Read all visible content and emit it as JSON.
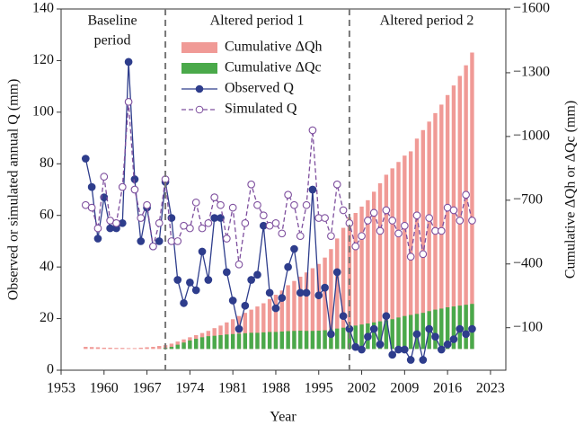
{
  "chart_data": {
    "type": "combo",
    "xlabel": "Year",
    "ylabel": "Observed or simulated annual Q (mm)",
    "y2label": "Cumulative ΔQh or ΔQc (mm)",
    "annotations": [
      "Baseline",
      "period",
      "Altered period 1",
      "Altered period 2"
    ],
    "period_breaks": [
      1970,
      2000
    ],
    "xlim": [
      1953,
      2025.5
    ],
    "xticks": [
      1953,
      1960,
      1967,
      1974,
      1981,
      1988,
      1995,
      2002,
      2009,
      2016,
      2023
    ],
    "ylim": [
      0,
      140
    ],
    "yticks": [
      0,
      20,
      40,
      60,
      80,
      100,
      120,
      140
    ],
    "y2lim": [
      100,
      -1600
    ],
    "y2ticks": [
      {
        "value": -1600,
        "label": "−1600"
      },
      {
        "value": -1300,
        "label": "−1300"
      },
      {
        "value": -1000,
        "label": "−1000"
      },
      {
        "value": -700,
        "label": "−700"
      },
      {
        "value": -400,
        "label": "−400"
      },
      {
        "value": -100,
        "label": "−100"
      }
    ],
    "x": [
      1957,
      1958,
      1959,
      1960,
      1961,
      1962,
      1963,
      1964,
      1965,
      1966,
      1967,
      1968,
      1969,
      1970,
      1971,
      1972,
      1973,
      1974,
      1975,
      1976,
      1977,
      1978,
      1979,
      1980,
      1981,
      1982,
      1983,
      1984,
      1985,
      1986,
      1987,
      1988,
      1989,
      1990,
      1991,
      1992,
      1993,
      1994,
      1995,
      1996,
      1997,
      1998,
      1999,
      2000,
      2001,
      2002,
      2003,
      2004,
      2005,
      2006,
      2007,
      2008,
      2009,
      2010,
      2011,
      2012,
      2013,
      2014,
      2015,
      2016,
      2017,
      2018,
      2019,
      2020
    ],
    "series": [
      {
        "name": "Cumulative ΔQh",
        "type": "bar",
        "axis": "y2",
        "color": "#f09a96",
        "values": [
          -10,
          -9,
          -8,
          -6,
          -6,
          -5,
          -5,
          -4,
          -4,
          -6,
          -8,
          -10,
          -14,
          -18,
          -25,
          -35,
          -45,
          -55,
          -65,
          -75,
          -85,
          -98,
          -110,
          -125,
          -140,
          -155,
          -170,
          -185,
          -200,
          -215,
          -235,
          -255,
          -275,
          -300,
          -320,
          -340,
          -360,
          -380,
          -400,
          -430,
          -470,
          -520,
          -570,
          -620,
          -640,
          -670,
          -700,
          -740,
          -780,
          -820,
          -850,
          -880,
          -910,
          -930,
          -990,
          -1030,
          -1070,
          -1110,
          -1150,
          -1195,
          -1240,
          -1285,
          -1335,
          -1395
        ]
      },
      {
        "name": "Cumulative ΔQc",
        "type": "bar",
        "axis": "y2",
        "color": "#4aa94a",
        "values": [
          0,
          0,
          0,
          0,
          0,
          0,
          0,
          0,
          0,
          0,
          0,
          0,
          0,
          -5,
          -10,
          -20,
          -30,
          -40,
          -48,
          -55,
          -60,
          -62,
          -65,
          -68,
          -70,
          -72,
          -74,
          -76,
          -76,
          -78,
          -80,
          -80,
          -82,
          -84,
          -85,
          -86,
          -85,
          -85,
          -86,
          -88,
          -92,
          -96,
          -100,
          -105,
          -110,
          -115,
          -120,
          -125,
          -130,
          -135,
          -140,
          -148,
          -155,
          -160,
          -165,
          -170,
          -178,
          -185,
          -190,
          -196,
          -200,
          -204,
          -208,
          -212
        ]
      },
      {
        "name": "Observed Q",
        "type": "line",
        "color": "#2e3d8c",
        "values": [
          82,
          71,
          51,
          67,
          55,
          55,
          57,
          119.5,
          74,
          50,
          63,
          48,
          50,
          73,
          59,
          35,
          26,
          34,
          31,
          46,
          35,
          59,
          59,
          38,
          27,
          16,
          25,
          35,
          37,
          56,
          30,
          24,
          28,
          40,
          47,
          30,
          30,
          70,
          29,
          32,
          14,
          38,
          21,
          16,
          9,
          8,
          13,
          16,
          10,
          21,
          6,
          8,
          8,
          4,
          14,
          4,
          16,
          13,
          8,
          10,
          12,
          16,
          14,
          16
        ]
      },
      {
        "name": "Simulated Q",
        "type": "line",
        "dashed": true,
        "color": "#7e4f9e",
        "values": [
          64,
          63,
          55,
          75,
          58,
          57,
          71,
          104,
          70,
          59,
          64,
          48,
          57,
          74,
          50,
          50,
          56,
          55,
          65,
          55,
          57,
          67,
          64,
          51,
          63,
          41,
          57,
          72,
          64,
          60,
          56,
          57,
          53,
          68,
          64,
          52,
          64,
          93,
          59,
          59,
          52,
          72,
          62,
          57,
          48,
          52,
          58,
          61,
          54,
          62,
          58,
          53,
          56,
          44,
          60,
          45,
          59,
          54,
          54,
          63,
          62,
          58,
          68,
          58
        ]
      }
    ]
  }
}
